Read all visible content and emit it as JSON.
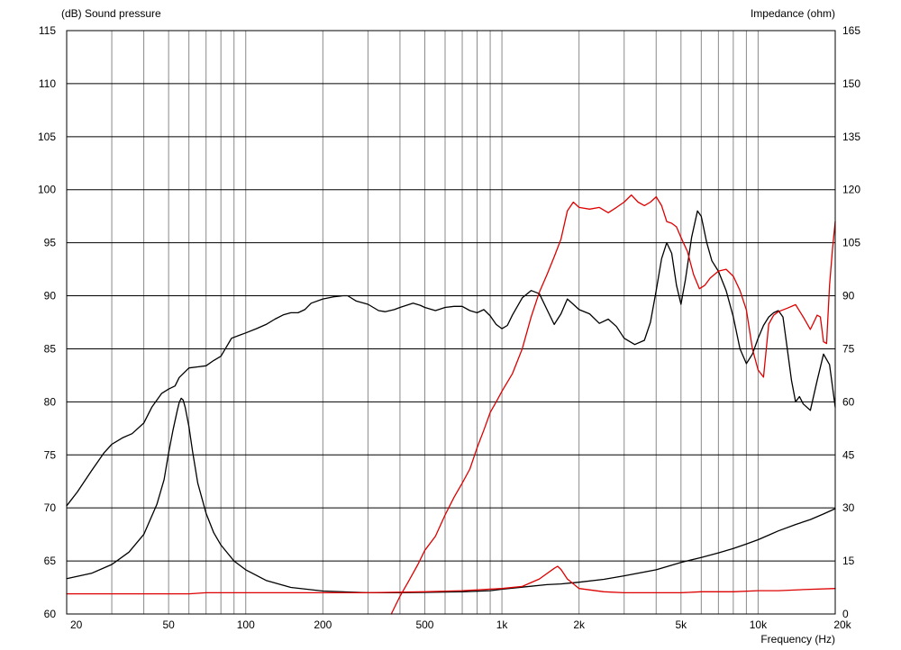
{
  "chart_data": {
    "type": "line",
    "left_axis_label": "(dB)  Sound pressure",
    "right_axis_label": "Impedance  (ohm)",
    "xlabel": "Frequency  (Hz)",
    "x_scale": "log",
    "xlim": [
      20,
      20000
    ],
    "ylim_left": [
      60,
      115
    ],
    "ylim_right": [
      0,
      165
    ],
    "grid": true,
    "x_major_ticks": [
      {
        "v": 20,
        "label": "20"
      },
      {
        "v": 50,
        "label": "50"
      },
      {
        "v": 100,
        "label": "100"
      },
      {
        "v": 200,
        "label": "200"
      },
      {
        "v": 500,
        "label": "500"
      },
      {
        "v": 1000,
        "label": "1k"
      },
      {
        "v": 2000,
        "label": "2k"
      },
      {
        "v": 5000,
        "label": "5k"
      },
      {
        "v": 10000,
        "label": "10k"
      },
      {
        "v": 20000,
        "label": "20k"
      }
    ],
    "y_left_ticks": [
      60,
      65,
      70,
      75,
      80,
      85,
      90,
      95,
      100,
      105,
      110,
      115
    ],
    "y_right_ticks": [
      0,
      15,
      30,
      45,
      60,
      75,
      90,
      105,
      120,
      135,
      150,
      165
    ],
    "series": [
      {
        "axis": "left",
        "color": "#000000",
        "x": [
          20,
          22,
          25,
          28,
          30,
          33,
          36,
          40,
          43,
          47,
          50,
          53,
          55,
          60,
          65,
          70,
          75,
          80,
          88,
          95,
          100,
          110,
          120,
          130,
          140,
          150,
          160,
          170,
          180,
          200,
          220,
          240,
          250,
          270,
          300,
          330,
          350,
          380,
          400,
          450,
          480,
          500,
          550,
          600,
          650,
          700,
          750,
          800,
          850,
          900,
          950,
          1000,
          1050,
          1100,
          1200,
          1300,
          1400,
          1500,
          1600,
          1700,
          1800,
          1900,
          2000,
          2200,
          2400,
          2600,
          2800,
          3000,
          3300,
          3600,
          3800,
          4000,
          4200,
          4400,
          4600,
          4800,
          5000,
          5200,
          5500,
          5800,
          6000,
          6300,
          6600,
          7000,
          7500,
          8000,
          8500,
          9000,
          9500,
          10000,
          10500,
          11000,
          11500,
          12000,
          12500,
          13000,
          13500,
          14000,
          14500,
          15000,
          16000,
          17000,
          18000,
          19000,
          20000
        ],
        "y": [
          70.2,
          71.5,
          73.5,
          75.2,
          76.0,
          76.6,
          77.0,
          78.0,
          79.5,
          80.8,
          81.2,
          81.5,
          82.3,
          83.2,
          83.3,
          83.4,
          83.9,
          84.3,
          86.0,
          86.3,
          86.5,
          86.9,
          87.3,
          87.8,
          88.2,
          88.4,
          88.4,
          88.7,
          89.3,
          89.7,
          89.9,
          90.0,
          90.0,
          89.5,
          89.2,
          88.6,
          88.5,
          88.7,
          88.9,
          89.3,
          89.1,
          88.9,
          88.6,
          88.9,
          89.0,
          89.0,
          88.6,
          88.4,
          88.7,
          88.1,
          87.3,
          86.9,
          87.2,
          88.2,
          89.8,
          90.5,
          90.2,
          88.7,
          87.3,
          88.3,
          89.7,
          89.2,
          88.7,
          88.3,
          87.4,
          87.8,
          87.1,
          86.0,
          85.4,
          85.8,
          87.5,
          90.5,
          93.5,
          95.0,
          94.0,
          91.0,
          89.2,
          91.5,
          95.5,
          98.0,
          97.5,
          95.0,
          93.3,
          92.3,
          90.5,
          88.0,
          85.0,
          83.6,
          84.5,
          86.0,
          87.2,
          88.0,
          88.4,
          88.6,
          88.0,
          85.0,
          82.0,
          80.0,
          80.5,
          79.8,
          79.2,
          82.0,
          84.5,
          83.5,
          79.5
        ]
      },
      {
        "axis": "right",
        "color": "#000000",
        "x": [
          20,
          25,
          30,
          35,
          40,
          45,
          48,
          50,
          52,
          54,
          55,
          56,
          57,
          58,
          60,
          62,
          65,
          70,
          75,
          80,
          90,
          100,
          120,
          150,
          200,
          300,
          400,
          500,
          700,
          900,
          1000,
          1200,
          1500,
          1700,
          2000,
          2500,
          3000,
          4000,
          5000,
          6000,
          7000,
          8000,
          9000,
          10000,
          11000,
          12000,
          14000,
          16000,
          18000,
          20000
        ],
        "y": [
          10.0,
          11.5,
          14.0,
          17.5,
          22.5,
          31.0,
          38.0,
          45.5,
          52.0,
          57.5,
          59.8,
          61.0,
          60.5,
          58.5,
          53.0,
          46.0,
          37.0,
          28.5,
          23.0,
          19.5,
          15.0,
          12.5,
          9.5,
          7.5,
          6.5,
          6.0,
          6.0,
          6.1,
          6.3,
          6.6,
          7.0,
          7.6,
          8.3,
          8.5,
          9.0,
          9.8,
          10.8,
          12.5,
          14.6,
          16.0,
          17.3,
          18.5,
          19.8,
          21.0,
          22.3,
          23.5,
          25.3,
          26.7,
          28.3,
          29.8
        ]
      },
      {
        "axis": "left",
        "color": "#dd0000",
        "x": [
          20,
          50,
          60,
          70,
          100,
          200,
          300,
          500,
          700,
          1000,
          1200,
          1400,
          1600,
          1650,
          1700,
          1800,
          2000,
          2500,
          3000,
          4000,
          5000,
          6000,
          7000,
          8000,
          10000,
          12000,
          15000,
          20000
        ],
        "y": [
          61.9,
          61.9,
          61.9,
          62.0,
          62.0,
          62.0,
          62.0,
          62.1,
          62.2,
          62.4,
          62.6,
          63.3,
          64.3,
          64.5,
          64.2,
          63.3,
          62.4,
          62.1,
          62.0,
          62.0,
          62.0,
          62.1,
          62.1,
          62.1,
          62.2,
          62.2,
          62.3,
          62.4
        ]
      },
      {
        "axis": "right",
        "color": "#dd0000",
        "x": [
          370,
          400,
          430,
          470,
          500,
          550,
          600,
          650,
          700,
          750,
          800,
          850,
          900,
          950,
          1000,
          1100,
          1200,
          1300,
          1400,
          1500,
          1600,
          1700,
          1800,
          1900,
          2000,
          2200,
          2400,
          2600,
          2800,
          3000,
          3200,
          3400,
          3600,
          3800,
          4000,
          4200,
          4400,
          4600,
          4800,
          5000,
          5300,
          5600,
          5900,
          6200,
          6500,
          7000,
          7500,
          8000,
          8500,
          9000,
          9500,
          10000,
          10500,
          11000,
          11500,
          12000,
          13000,
          14000,
          15000,
          16000,
          16500,
          17000,
          17500,
          18000,
          18500,
          19000,
          19500,
          20000
        ],
        "y": [
          0.0,
          5.0,
          9.0,
          14.0,
          18.0,
          22.0,
          28.0,
          33.0,
          37.0,
          41.0,
          47.0,
          52.0,
          57.0,
          60.0,
          63.0,
          68.0,
          75.0,
          84.0,
          91.0,
          96.0,
          101.0,
          106.0,
          114.0,
          116.5,
          115.0,
          114.5,
          115.0,
          113.5,
          115.0,
          116.5,
          118.5,
          116.5,
          115.5,
          116.5,
          118.0,
          115.5,
          111.0,
          110.5,
          109.5,
          106.5,
          102.5,
          96.0,
          92.0,
          93.0,
          95.0,
          97.0,
          97.5,
          95.5,
          91.5,
          86.0,
          75.0,
          69.0,
          67.0,
          82.0,
          84.5,
          85.5,
          86.5,
          87.5,
          84.0,
          80.5,
          82.5,
          84.5,
          84.0,
          77.0,
          76.5,
          93.0,
          103.0,
          111.0
        ]
      }
    ]
  }
}
